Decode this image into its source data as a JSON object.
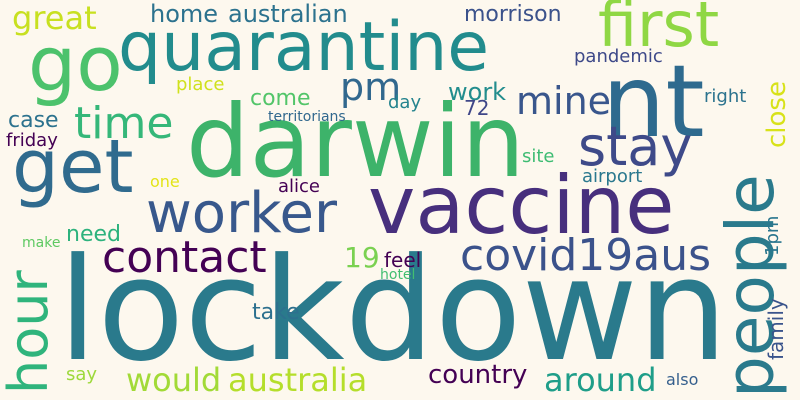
{
  "words": [
    {
      "text": "lockdown",
      "color": "#2a7a8c"
    },
    {
      "text": "darwin",
      "color": "#3db36a"
    },
    {
      "text": "vaccine",
      "color": "#472f7d"
    },
    {
      "text": "quarantine",
      "color": "#228c8d"
    },
    {
      "text": "nt",
      "color": "#2e6a8e"
    },
    {
      "text": "people",
      "color": "#2a7a8c"
    },
    {
      "text": "go",
      "color": "#4cc26c"
    },
    {
      "text": "get",
      "color": "#306b8e"
    },
    {
      "text": "first",
      "color": "#8fd744"
    },
    {
      "text": "worker",
      "color": "#38588c"
    },
    {
      "text": "stay",
      "color": "#3e4a89"
    },
    {
      "text": "contact",
      "color": "#440154"
    },
    {
      "text": "covid19aus",
      "color": "#3b528b"
    },
    {
      "text": "hour",
      "color": "#2fb47c"
    },
    {
      "text": "time",
      "color": "#35b779"
    },
    {
      "text": "pm",
      "color": "#31688e"
    },
    {
      "text": "mine",
      "color": "#39568c"
    },
    {
      "text": "australia",
      "color": "#b5de2b"
    },
    {
      "text": "would",
      "color": "#a2da37"
    },
    {
      "text": "around",
      "color": "#1f9e89"
    },
    {
      "text": "country",
      "color": "#440154"
    },
    {
      "text": "great",
      "color": "#c8e020"
    },
    {
      "text": "home",
      "color": "#2c728e"
    },
    {
      "text": "australian",
      "color": "#2c728e"
    },
    {
      "text": "morrison",
      "color": "#3b528b"
    },
    {
      "text": "pandemic",
      "color": "#3e4989"
    },
    {
      "text": "close",
      "color": "#d8e219"
    },
    {
      "text": "family",
      "color": "#3a548c"
    },
    {
      "text": "need",
      "color": "#2db27d"
    },
    {
      "text": "come",
      "color": "#52c569"
    },
    {
      "text": "work",
      "color": "#228d8d"
    },
    {
      "text": "right",
      "color": "#2c738e"
    },
    {
      "text": "place",
      "color": "#d0e11c"
    },
    {
      "text": "day",
      "color": "#25848e"
    },
    {
      "text": "72",
      "color": "#3f4788"
    },
    {
      "text": "case",
      "color": "#2c728e"
    },
    {
      "text": "territorians",
      "color": "#31688e"
    },
    {
      "text": "friday",
      "color": "#440154"
    },
    {
      "text": "site",
      "color": "#3ebc73"
    },
    {
      "text": "one",
      "color": "#e3e418"
    },
    {
      "text": "airport",
      "color": "#2a788e"
    },
    {
      "text": "alice",
      "color": "#440154"
    },
    {
      "text": "19",
      "color": "#7ad151"
    },
    {
      "text": "feel",
      "color": "#440154"
    },
    {
      "text": "hotel",
      "color": "#42be71"
    },
    {
      "text": "make",
      "color": "#5ec962"
    },
    {
      "text": "1pm",
      "color": "#2a768e"
    },
    {
      "text": "take",
      "color": "#2d708e"
    },
    {
      "text": "say",
      "color": "#9dd93b"
    },
    {
      "text": "also",
      "color": "#355f8d"
    }
  ]
}
